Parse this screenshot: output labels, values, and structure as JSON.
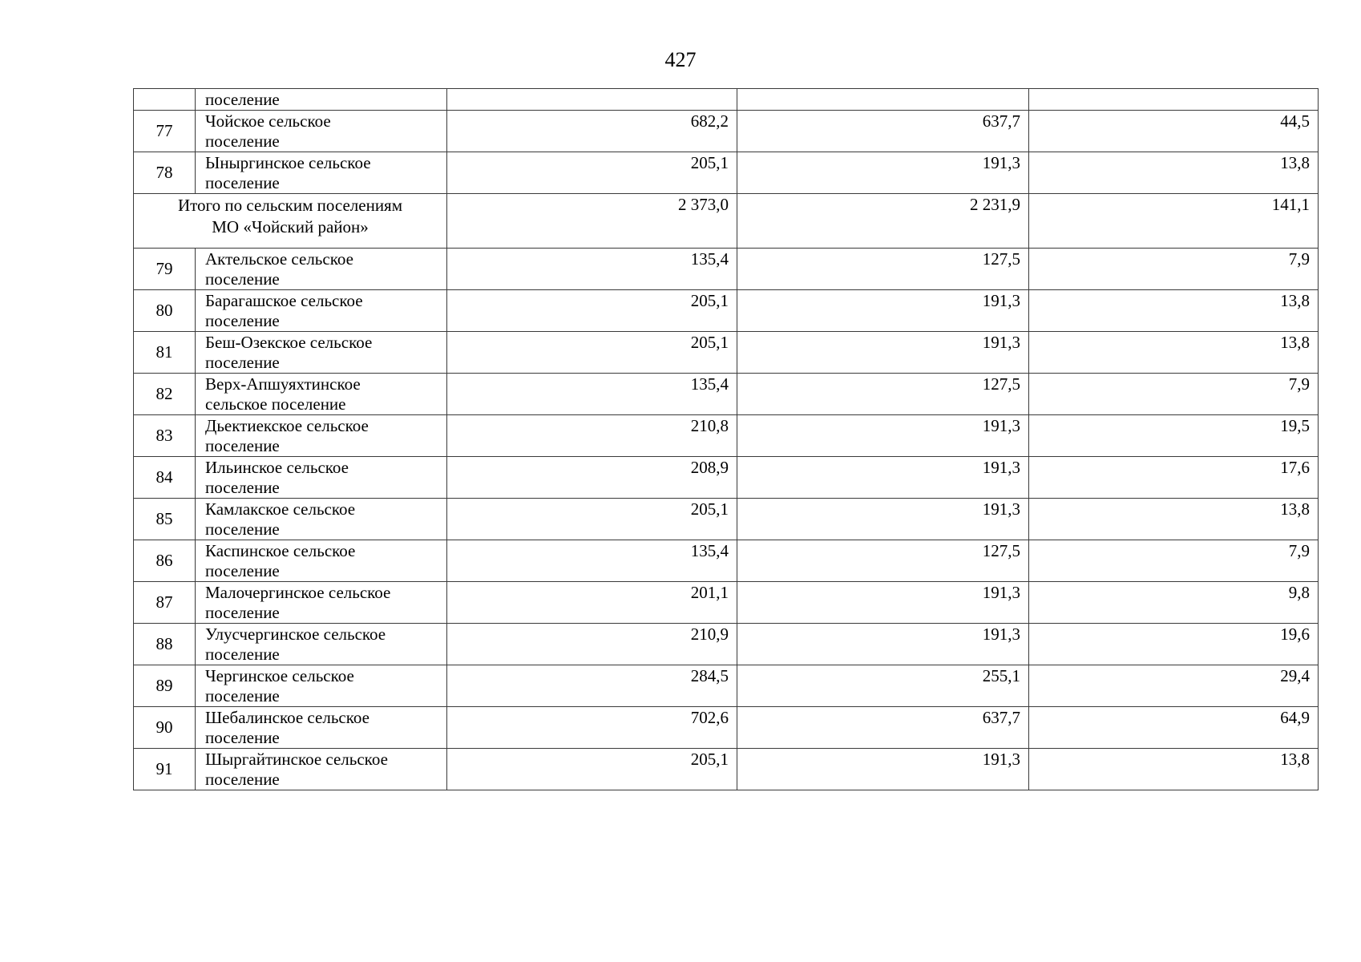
{
  "page": {
    "number": "427"
  },
  "table": {
    "rows": [
      {
        "type": "partial",
        "num": "",
        "name": "поселение",
        "v1": "",
        "v2": "",
        "v3": ""
      },
      {
        "type": "data",
        "num": "77",
        "name": "Чойское сельское\nпоселение",
        "v1": "682,2",
        "v2": "637,7",
        "v3": "44,5"
      },
      {
        "type": "data",
        "num": "78",
        "name": "Ыныргинское сельское\nпоселение",
        "v1": "205,1",
        "v2": "191,3",
        "v3": "13,8"
      },
      {
        "type": "total",
        "label": "Итого по сельским поселениям\nМО «Чойский район»",
        "v1": "2 373,0",
        "v2": "2 231,9",
        "v3": "141,1"
      },
      {
        "type": "data",
        "num": "79",
        "name": "Актельское сельское\nпоселение",
        "v1": "135,4",
        "v2": "127,5",
        "v3": "7,9"
      },
      {
        "type": "data",
        "num": "80",
        "name": "Барагашское сельское\nпоселение",
        "v1": "205,1",
        "v2": "191,3",
        "v3": "13,8"
      },
      {
        "type": "data",
        "num": "81",
        "name": "Беш-Озекское сельское\nпоселение",
        "v1": "205,1",
        "v2": "191,3",
        "v3": "13,8"
      },
      {
        "type": "data",
        "num": "82",
        "name": "Верх-Апшуяхтинское\nсельское поселение",
        "v1": "135,4",
        "v2": "127,5",
        "v3": "7,9"
      },
      {
        "type": "data",
        "num": "83",
        "name": "Дьектиекское сельское\nпоселение",
        "v1": "210,8",
        "v2": "191,3",
        "v3": "19,5"
      },
      {
        "type": "data",
        "num": "84",
        "name": "Ильинское сельское\nпоселение",
        "v1": "208,9",
        "v2": "191,3",
        "v3": "17,6"
      },
      {
        "type": "data",
        "num": "85",
        "name": "Камлакское сельское\nпоселение",
        "v1": "205,1",
        "v2": "191,3",
        "v3": "13,8"
      },
      {
        "type": "data",
        "num": "86",
        "name": "Каспинское сельское\nпоселение",
        "v1": "135,4",
        "v2": "127,5",
        "v3": "7,9"
      },
      {
        "type": "data",
        "num": "87",
        "name": "Малочергинское сельское\nпоселение",
        "v1": "201,1",
        "v2": "191,3",
        "v3": "9,8"
      },
      {
        "type": "data",
        "num": "88",
        "name": "Улусчергинское сельское\nпоселение",
        "v1": "210,9",
        "v2": "191,3",
        "v3": "19,6"
      },
      {
        "type": "data",
        "num": "89",
        "name": "Чергинское сельское\nпоселение",
        "v1": "284,5",
        "v2": "255,1",
        "v3": "29,4"
      },
      {
        "type": "data",
        "num": "90",
        "name": "Шебалинское сельское\nпоселение",
        "v1": "702,6",
        "v2": "637,7",
        "v3": "64,9"
      },
      {
        "type": "data",
        "num": "91",
        "name": "Шыргайтинское сельское\nпоселение",
        "v1": "205,1",
        "v2": "191,3",
        "v3": "13,8"
      }
    ]
  }
}
